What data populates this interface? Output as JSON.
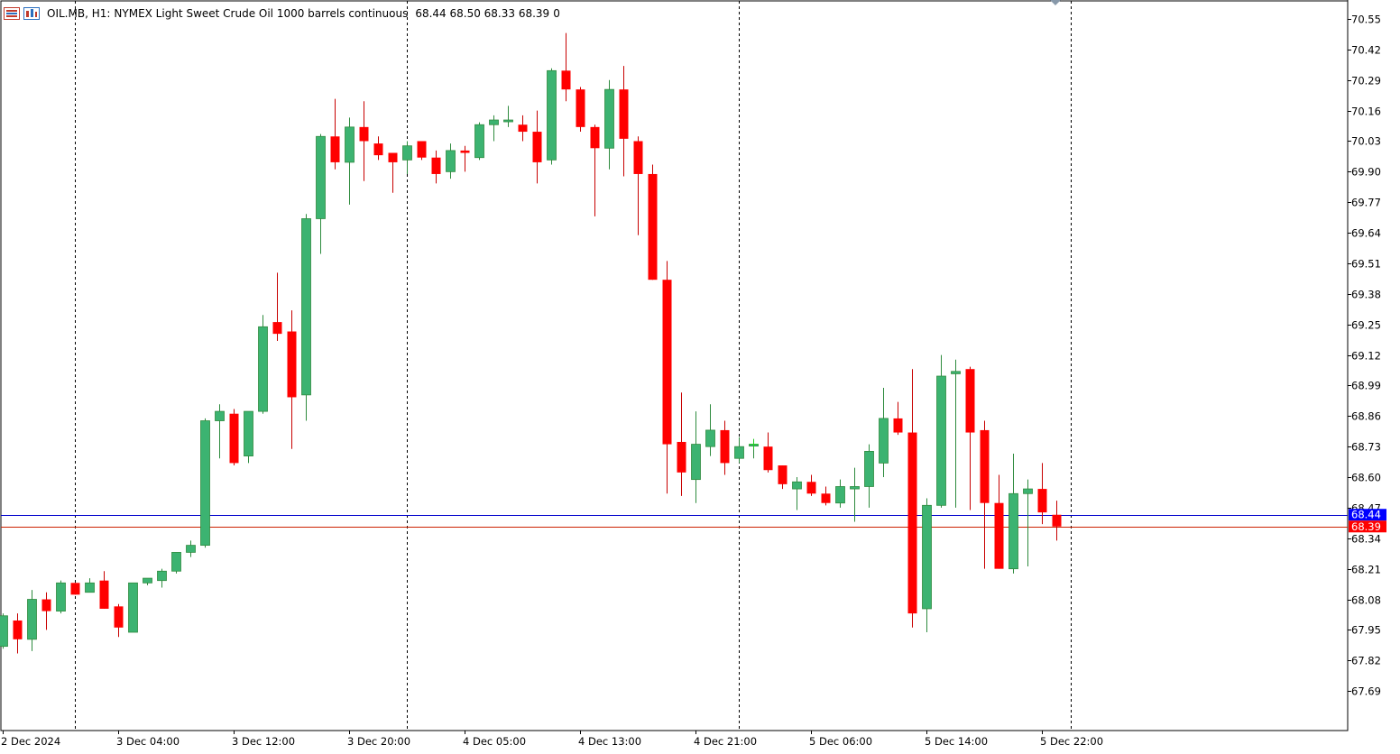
{
  "header": {
    "symbol": "OIL.MB, H1:",
    "description": "NYMEX Light Sweet Crude Oil 1000 barrels continuous",
    "ohlc": "68.44 68.50 68.33 68.39",
    "ticks": "0"
  },
  "colors": {
    "bull": "#3cb371",
    "bear": "#ff0000",
    "wick_bull": "#2e8b3e",
    "wick_bear": "#c80000",
    "bid_line": "#0000cc",
    "ask_line": "#cc2200",
    "bid_tag": "#0000ff",
    "ask_tag": "#ff0000"
  },
  "chart_data": {
    "type": "candlestick",
    "timeframe": "H1",
    "ylim": [
      67.58,
      70.6
    ],
    "y_ticks": [
      "70.55",
      "70.42",
      "70.29",
      "70.16",
      "70.03",
      "69.90",
      "69.77",
      "69.64",
      "69.51",
      "69.38",
      "69.25",
      "69.12",
      "68.99",
      "68.86",
      "68.73",
      "68.60",
      "68.47",
      "68.34",
      "68.21",
      "68.08",
      "67.95",
      "67.82",
      "67.69"
    ],
    "x_labels": [
      {
        "label": "2 Dec 2024",
        "index": 0
      },
      {
        "label": "3 Dec 04:00",
        "index": 8
      },
      {
        "label": "3 Dec 12:00",
        "index": 16
      },
      {
        "label": "3 Dec 20:00",
        "index": 24
      },
      {
        "label": "4 Dec 05:00",
        "index": 32
      },
      {
        "label": "4 Dec 13:00",
        "index": 40
      },
      {
        "label": "4 Dec 21:00",
        "index": 48
      },
      {
        "label": "5 Dec 06:00",
        "index": 56
      },
      {
        "label": "5 Dec 14:00",
        "index": 64
      },
      {
        "label": "5 Dec 22:00",
        "index": 72
      }
    ],
    "day_separators": [
      5,
      28,
      51,
      74
    ],
    "price_lines": [
      {
        "name": "bid",
        "value": 68.44,
        "label": "68.44"
      },
      {
        "name": "ask",
        "value": 68.39,
        "label": "68.39"
      }
    ],
    "candles": [
      {
        "o": 67.88,
        "h": 68.02,
        "l": 67.87,
        "c": 68.01
      },
      {
        "o": 67.99,
        "h": 68.02,
        "l": 67.85,
        "c": 67.91
      },
      {
        "o": 67.91,
        "h": 68.12,
        "l": 67.86,
        "c": 68.08
      },
      {
        "o": 68.08,
        "h": 68.11,
        "l": 67.95,
        "c": 68.03
      },
      {
        "o": 68.03,
        "h": 68.16,
        "l": 68.02,
        "c": 68.15
      },
      {
        "o": 68.15,
        "h": 68.15,
        "l": 68.1,
        "c": 68.1
      },
      {
        "o": 68.11,
        "h": 68.17,
        "l": 68.11,
        "c": 68.15
      },
      {
        "o": 68.16,
        "h": 68.2,
        "l": 68.04,
        "c": 68.04
      },
      {
        "o": 68.05,
        "h": 68.06,
        "l": 67.92,
        "c": 67.96
      },
      {
        "o": 67.94,
        "h": 68.15,
        "l": 67.94,
        "c": 68.15
      },
      {
        "o": 68.15,
        "h": 68.17,
        "l": 68.14,
        "c": 68.17
      },
      {
        "o": 68.16,
        "h": 68.21,
        "l": 68.13,
        "c": 68.2
      },
      {
        "o": 68.2,
        "h": 68.28,
        "l": 68.19,
        "c": 68.28
      },
      {
        "o": 68.28,
        "h": 68.33,
        "l": 68.26,
        "c": 68.31
      },
      {
        "o": 68.31,
        "h": 68.85,
        "l": 68.3,
        "c": 68.84
      },
      {
        "o": 68.84,
        "h": 68.91,
        "l": 68.68,
        "c": 68.88
      },
      {
        "o": 68.87,
        "h": 68.89,
        "l": 68.65,
        "c": 68.66
      },
      {
        "o": 68.69,
        "h": 68.88,
        "l": 68.66,
        "c": 68.88
      },
      {
        "o": 68.88,
        "h": 69.29,
        "l": 68.87,
        "c": 69.24
      },
      {
        "o": 69.26,
        "h": 69.47,
        "l": 69.18,
        "c": 69.21
      },
      {
        "o": 69.22,
        "h": 69.31,
        "l": 68.72,
        "c": 68.94
      },
      {
        "o": 68.95,
        "h": 69.72,
        "l": 68.84,
        "c": 69.7
      },
      {
        "o": 69.7,
        "h": 70.06,
        "l": 69.55,
        "c": 70.05
      },
      {
        "o": 70.05,
        "h": 70.21,
        "l": 69.91,
        "c": 69.94
      },
      {
        "o": 69.94,
        "h": 70.13,
        "l": 69.76,
        "c": 70.09
      },
      {
        "o": 70.09,
        "h": 70.2,
        "l": 69.86,
        "c": 70.03
      },
      {
        "o": 70.02,
        "h": 70.05,
        "l": 69.95,
        "c": 69.97
      },
      {
        "o": 69.98,
        "h": 69.98,
        "l": 69.81,
        "c": 69.94
      },
      {
        "o": 69.95,
        "h": 70.03,
        "l": 69.89,
        "c": 70.01
      },
      {
        "o": 70.03,
        "h": 70.03,
        "l": 69.95,
        "c": 69.96
      },
      {
        "o": 69.96,
        "h": 69.99,
        "l": 69.85,
        "c": 69.89
      },
      {
        "o": 69.9,
        "h": 70.02,
        "l": 69.87,
        "c": 69.99
      },
      {
        "o": 69.99,
        "h": 70.01,
        "l": 69.9,
        "c": 69.98
      },
      {
        "o": 69.96,
        "h": 70.11,
        "l": 69.95,
        "c": 70.1
      },
      {
        "o": 70.1,
        "h": 70.14,
        "l": 70.03,
        "c": 70.12
      },
      {
        "o": 70.12,
        "h": 70.18,
        "l": 70.09,
        "c": 70.12
      },
      {
        "o": 70.1,
        "h": 70.14,
        "l": 70.03,
        "c": 70.07
      },
      {
        "o": 70.07,
        "h": 70.16,
        "l": 69.85,
        "c": 69.94
      },
      {
        "o": 69.95,
        "h": 70.34,
        "l": 69.93,
        "c": 70.33
      },
      {
        "o": 70.33,
        "h": 70.49,
        "l": 70.2,
        "c": 70.25
      },
      {
        "o": 70.25,
        "h": 70.26,
        "l": 70.07,
        "c": 70.09
      },
      {
        "o": 70.09,
        "h": 70.1,
        "l": 69.71,
        "c": 70.0
      },
      {
        "o": 70.0,
        "h": 70.29,
        "l": 69.91,
        "c": 70.25
      },
      {
        "o": 70.25,
        "h": 70.35,
        "l": 69.88,
        "c": 70.04
      },
      {
        "o": 70.03,
        "h": 70.05,
        "l": 69.63,
        "c": 69.89
      },
      {
        "o": 69.89,
        "h": 69.93,
        "l": 69.44,
        "c": 69.44
      },
      {
        "o": 69.44,
        "h": 69.52,
        "l": 68.53,
        "c": 68.74
      },
      {
        "o": 68.75,
        "h": 68.96,
        "l": 68.52,
        "c": 68.62
      },
      {
        "o": 68.59,
        "h": 68.88,
        "l": 68.49,
        "c": 68.74
      },
      {
        "o": 68.73,
        "h": 68.91,
        "l": 68.69,
        "c": 68.8
      },
      {
        "o": 68.8,
        "h": 68.84,
        "l": 68.61,
        "c": 68.66
      },
      {
        "o": 68.68,
        "h": 68.77,
        "l": 68.66,
        "c": 68.73
      },
      {
        "o": 68.74,
        "h": 68.76,
        "l": 68.68,
        "c": 68.74
      },
      {
        "o": 68.73,
        "h": 68.79,
        "l": 68.62,
        "c": 68.63
      },
      {
        "o": 68.65,
        "h": 68.65,
        "l": 68.55,
        "c": 68.57
      },
      {
        "o": 68.55,
        "h": 68.6,
        "l": 68.46,
        "c": 68.58
      },
      {
        "o": 68.58,
        "h": 68.61,
        "l": 68.52,
        "c": 68.53
      },
      {
        "o": 68.53,
        "h": 68.56,
        "l": 68.48,
        "c": 68.49
      },
      {
        "o": 68.49,
        "h": 68.59,
        "l": 68.47,
        "c": 68.56
      },
      {
        "o": 68.55,
        "h": 68.64,
        "l": 68.41,
        "c": 68.56
      },
      {
        "o": 68.56,
        "h": 68.74,
        "l": 68.47,
        "c": 68.71
      },
      {
        "o": 68.66,
        "h": 68.98,
        "l": 68.6,
        "c": 68.85
      },
      {
        "o": 68.85,
        "h": 68.92,
        "l": 68.78,
        "c": 68.79
      },
      {
        "o": 68.79,
        "h": 69.06,
        "l": 67.96,
        "c": 68.02
      },
      {
        "o": 68.04,
        "h": 68.51,
        "l": 67.94,
        "c": 68.48
      },
      {
        "o": 68.48,
        "h": 69.12,
        "l": 68.47,
        "c": 69.03
      },
      {
        "o": 69.04,
        "h": 69.1,
        "l": 68.47,
        "c": 69.05
      },
      {
        "o": 69.06,
        "h": 69.07,
        "l": 68.46,
        "c": 68.79
      },
      {
        "o": 68.8,
        "h": 68.84,
        "l": 68.21,
        "c": 68.49
      },
      {
        "o": 68.49,
        "h": 68.61,
        "l": 68.21,
        "c": 68.21
      },
      {
        "o": 68.21,
        "h": 68.7,
        "l": 68.19,
        "c": 68.53
      },
      {
        "o": 68.53,
        "h": 68.59,
        "l": 68.22,
        "c": 68.55
      },
      {
        "o": 68.55,
        "h": 68.66,
        "l": 68.4,
        "c": 68.45
      },
      {
        "o": 68.44,
        "h": 68.5,
        "l": 68.33,
        "c": 68.39
      }
    ]
  }
}
